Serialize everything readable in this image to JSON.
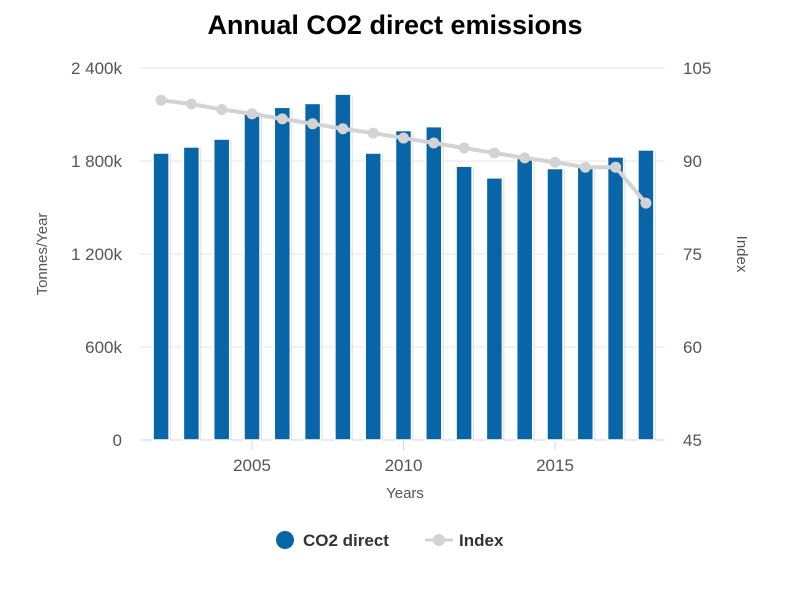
{
  "chart_data": {
    "type": "bar",
    "title": "Annual CO2 direct emissions",
    "xlabel": "Years",
    "ylabel": "Tonnes/Year",
    "y2label": "Index",
    "x": [
      2002,
      2003,
      2004,
      2005,
      2006,
      2007,
      2008,
      2009,
      2010,
      2011,
      2012,
      2013,
      2014,
      2015,
      2016,
      2017,
      2018
    ],
    "x_ticks": [
      "2005",
      "2010",
      "2015"
    ],
    "y_ticks": [
      "0",
      "600k",
      "1 200k",
      "1 800k",
      "2 400k"
    ],
    "y2_ticks": [
      "45",
      "60",
      "75",
      "90",
      "105"
    ],
    "ylim": [
      0,
      2400000
    ],
    "y2lim": [
      45,
      105
    ],
    "grid": true,
    "legend_position": "bottom",
    "series": [
      {
        "name": "CO2 direct",
        "type": "bar",
        "axis": "left",
        "color": "#0765a8",
        "values": [
          1845000,
          1884000,
          1935000,
          2110000,
          2140000,
          2165000,
          2225000,
          1845000,
          1990000,
          2015000,
          1760000,
          1685000,
          1810000,
          1745000,
          1765000,
          1820000,
          1865000
        ]
      },
      {
        "name": "Index",
        "type": "line",
        "axis": "right",
        "color": "#d3d3d3",
        "values": [
          99.8,
          99.2,
          98.3,
          97.6,
          96.8,
          96.0,
          95.2,
          94.5,
          93.7,
          92.9,
          92.1,
          91.3,
          90.5,
          89.8,
          89.0,
          89.0,
          83.2
        ]
      }
    ]
  }
}
